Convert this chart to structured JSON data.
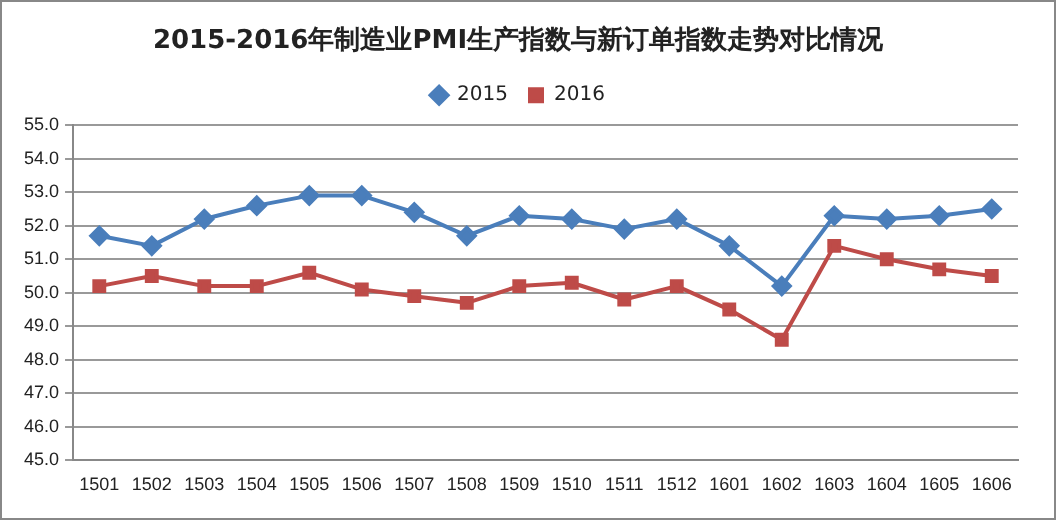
{
  "chart_data": {
    "type": "line",
    "title": "2015-2016年制造业PMI生产指数与新订单指数走势对比情况",
    "categories": [
      "1501",
      "1502",
      "1503",
      "1504",
      "1505",
      "1506",
      "1507",
      "1508",
      "1509",
      "1510",
      "1511",
      "1512",
      "1601",
      "1602",
      "1603",
      "1604",
      "1605",
      "1606"
    ],
    "series": [
      {
        "name": "2015",
        "color": "#4a7ebb",
        "marker": "diamond",
        "values": [
          51.7,
          51.4,
          52.2,
          52.6,
          52.9,
          52.9,
          52.4,
          51.7,
          52.3,
          52.2,
          51.9,
          52.2,
          51.4,
          50.2,
          52.3,
          52.2,
          52.3,
          52.5
        ]
      },
      {
        "name": "2016",
        "color": "#be4b48",
        "marker": "square",
        "values": [
          50.2,
          50.5,
          50.2,
          50.2,
          50.6,
          50.1,
          49.9,
          49.7,
          50.2,
          50.3,
          49.8,
          50.2,
          49.5,
          48.6,
          51.4,
          51.0,
          50.7,
          50.5
        ]
      }
    ],
    "ylim": [
      45,
      55
    ],
    "yticks": [
      {
        "value": 45,
        "label": "45.0"
      },
      {
        "value": 46,
        "label": "46.0"
      },
      {
        "value": 47,
        "label": "47.0"
      },
      {
        "value": 48,
        "label": "48.0"
      },
      {
        "value": 49,
        "label": "49.0"
      },
      {
        "value": 50,
        "label": "50.0"
      },
      {
        "value": 51,
        "label": "51.0"
      },
      {
        "value": 52,
        "label": "52.0"
      },
      {
        "value": 53,
        "label": "53.0"
      },
      {
        "value": 54,
        "label": "54.0"
      },
      {
        "value": 55,
        "label": "55.0"
      }
    ],
    "grid": "y",
    "legend": "top",
    "line_style": "solid"
  }
}
